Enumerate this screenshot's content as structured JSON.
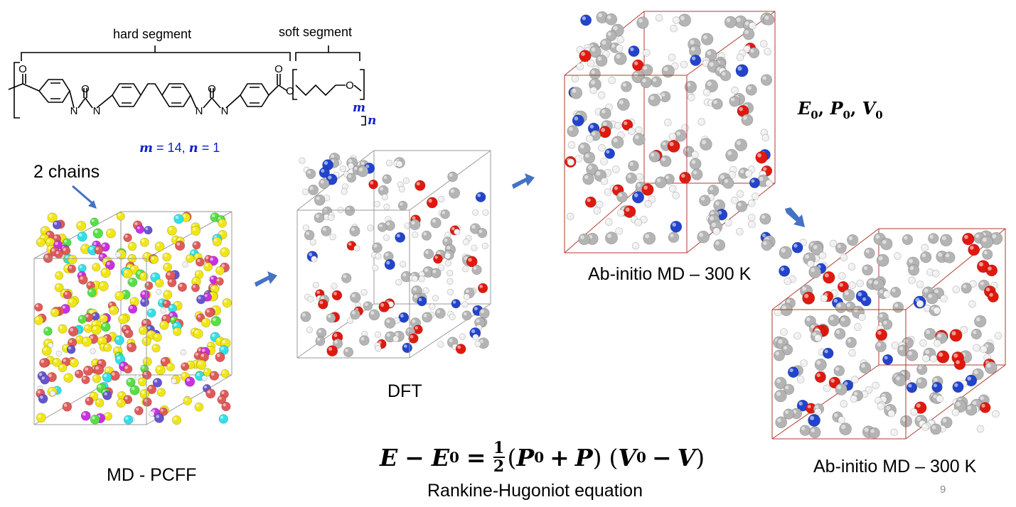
{
  "chemical_structure": {
    "hard_segment_label": "hard segment",
    "soft_segment_label": "soft segment",
    "atoms": {
      "o": "O",
      "n": "N"
    },
    "m_sub": "m",
    "n_sub": "n",
    "parameters": {
      "m_var": "m",
      "m_value": " = 14, ",
      "n_var": "n",
      "n_value": " = 1"
    }
  },
  "annotations": {
    "chains": "2 chains"
  },
  "panels": {
    "md_pcff": "MD - PCFF",
    "dft": "DFT",
    "aimd_top": "Ab-initio MD – 300 K",
    "aimd_bottom": "Ab-initio MD – 300 K"
  },
  "reference_state": {
    "e": "E",
    "p": "P",
    "v": "V",
    "sub": "0",
    "sep": ", "
  },
  "equation": {
    "name": "Rankine-Hugoniot equation",
    "E": "E",
    "minus": "−",
    "E0": "E",
    "zero": "0",
    "eq": "=",
    "num": "1",
    "den": "2",
    "p_open": "(",
    "P0": "P",
    "plus": "+",
    "P": "P",
    "p_close": ")",
    "v_open": "(",
    "V0": "V",
    "minus2": "−",
    "V": "V",
    "v_close": ")"
  },
  "page_number": "9",
  "colors": {
    "arrow": "#4472c4",
    "box_gray": "#9a9a9a",
    "box_red": "#b03a2e",
    "carbon": "#b4b4b4",
    "hydrogen": "#f0f0f0",
    "oxygen": "#e0190f",
    "nitrogen": "#2244cc",
    "yellow": "#f0e614",
    "salmon": "#e05a5a",
    "green": "#55e045",
    "violet": "#6655cc",
    "magenta": "#c830e0",
    "cyan": "#30e0e8"
  },
  "molecule_colors": {
    "md": [
      "yellow",
      "yellow",
      "yellow",
      "yellow",
      "salmon",
      "salmon",
      "green",
      "violet",
      "yellow",
      "salmon",
      "magenta",
      "cyan",
      "yellow",
      "salmon",
      "hydrogen"
    ],
    "aimd": [
      "carbon",
      "carbon",
      "carbon",
      "hydrogen",
      "hydrogen",
      "hydrogen",
      "oxygen",
      "carbon",
      "hydrogen",
      "nitrogen",
      "carbon",
      "hydrogen"
    ]
  }
}
